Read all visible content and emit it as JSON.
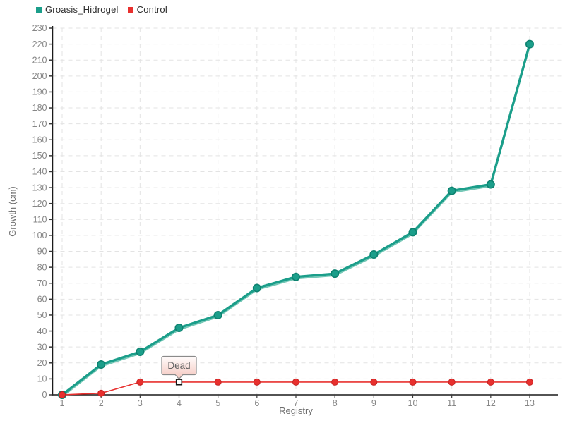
{
  "chart_data": {
    "type": "line",
    "title": "",
    "xlabel": "Registry",
    "ylabel": "Growth (cm)",
    "x": [
      1,
      2,
      3,
      4,
      5,
      6,
      7,
      8,
      9,
      10,
      11,
      12,
      13
    ],
    "ylim": [
      0,
      230
    ],
    "ytick_step": 10,
    "grid": true,
    "legend_position": "top-left",
    "axis_color": "#1a1a1a",
    "gridline_color": "#e3e3e3",
    "tick_label_color": "#868686",
    "axis_title_color": "#6e6e6e",
    "series": [
      {
        "name": "Groasis_Hidrogel",
        "color": "#1b9e8a",
        "marker_stroke": "#0d8270",
        "shine_color": "#74c7b6",
        "values": [
          0,
          19,
          27,
          42,
          50,
          67,
          74,
          76,
          88,
          102,
          128,
          132,
          220
        ]
      },
      {
        "name": "Control",
        "color": "#e8302e",
        "marker_stroke": "#c42222",
        "values": [
          0,
          1,
          8,
          8,
          8,
          8,
          8,
          8,
          8,
          8,
          8,
          8,
          8
        ]
      }
    ],
    "annotations": [
      {
        "type": "tooltip",
        "text": "Dead",
        "series_index": 1,
        "point_index": 3,
        "text_color": "#636363",
        "bg_top": "#fffcfc",
        "bg_bottom": "#f6d0c9",
        "border_color": "#8a8a8a",
        "marker": "white-square"
      }
    ]
  }
}
